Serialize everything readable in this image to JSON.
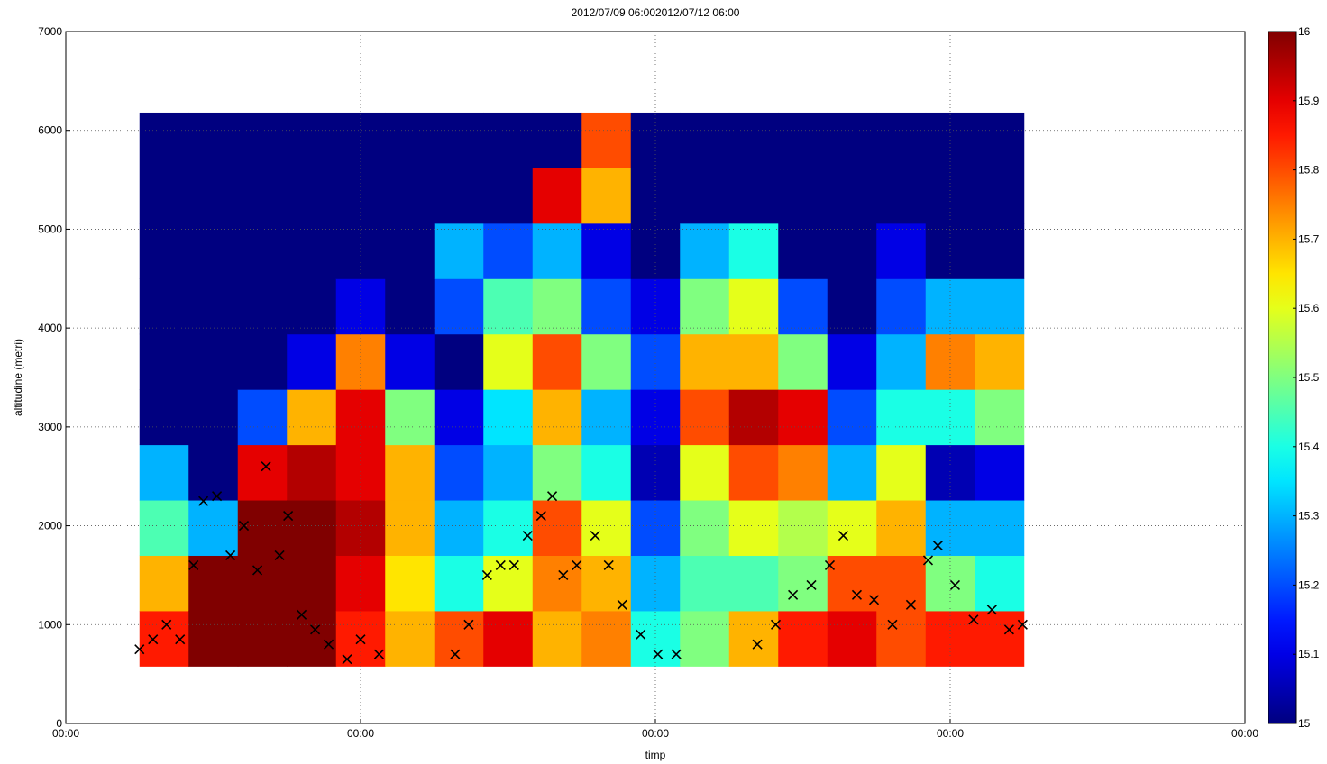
{
  "chart_data": {
    "type": "heatmap",
    "title": "2012/07/09 06:002012/07/12 06:00",
    "x_label": "timp",
    "y_label": "altitudine (metri)",
    "xlim": [
      0,
      96
    ],
    "xticks": [
      {
        "value": 0,
        "label": "00:00"
      },
      {
        "value": 24,
        "label": "00:00"
      },
      {
        "value": 48,
        "label": "00:00"
      },
      {
        "value": 72,
        "label": "00:00"
      },
      {
        "value": 96,
        "label": "00:00"
      }
    ],
    "ylim": [
      0,
      7000
    ],
    "yticks": [
      0,
      1000,
      2000,
      3000,
      4000,
      5000,
      6000,
      7000
    ],
    "grid": true,
    "colormap": "jet",
    "clim": [
      15,
      16
    ],
    "cticks": [
      15,
      15.1,
      15.2,
      15.3,
      15.4,
      15.5,
      15.6,
      15.7,
      15.8,
      15.9,
      16
    ],
    "x_edges": [
      6,
      10,
      14,
      18,
      22,
      26,
      30,
      34,
      38,
      42,
      46,
      50,
      54,
      58,
      62,
      66,
      70,
      74,
      78
    ],
    "y_edges": [
      580,
      1140,
      1700,
      2260,
      2820,
      3380,
      3940,
      4500,
      5060,
      5620,
      6180
    ],
    "z": [
      [
        15.85,
        15.7,
        15.45,
        15.3,
        15,
        15,
        15,
        15,
        15,
        15
      ],
      [
        16,
        16,
        15.3,
        15,
        15,
        15,
        15,
        15,
        15,
        15
      ],
      [
        16,
        16,
        16,
        15.9,
        15.2,
        15,
        15,
        15,
        15,
        15
      ],
      [
        16,
        16,
        16,
        15.95,
        15.7,
        15.1,
        15,
        15,
        15,
        15
      ],
      [
        15.85,
        15.9,
        15.95,
        15.9,
        15.9,
        15.75,
        15.1,
        15,
        15,
        15
      ],
      [
        15.7,
        15.65,
        15.7,
        15.7,
        15.5,
        15.1,
        15,
        15,
        15,
        15
      ],
      [
        15.8,
        15.4,
        15.3,
        15.2,
        15.1,
        15,
        15.2,
        15.3,
        15,
        15
      ],
      [
        15.9,
        15.6,
        15.4,
        15.3,
        15.35,
        15.6,
        15.45,
        15.2,
        15,
        15
      ],
      [
        15.7,
        15.75,
        15.8,
        15.5,
        15.7,
        15.8,
        15.5,
        15.3,
        15.9,
        15
      ],
      [
        15.75,
        15.7,
        15.6,
        15.4,
        15.3,
        15.5,
        15.2,
        15.1,
        15.7,
        15.8
      ],
      [
        15.4,
        15.3,
        15.2,
        15.05,
        15.1,
        15.2,
        15.1,
        15,
        15,
        15
      ],
      [
        15.5,
        15.45,
        15.5,
        15.6,
        15.8,
        15.7,
        15.5,
        15.3,
        15,
        15
      ],
      [
        15.7,
        15.45,
        15.6,
        15.8,
        15.95,
        15.7,
        15.6,
        15.4,
        15,
        15
      ],
      [
        15.85,
        15.5,
        15.55,
        15.75,
        15.9,
        15.5,
        15.2,
        15,
        15,
        15
      ],
      [
        15.9,
        15.8,
        15.6,
        15.3,
        15.2,
        15.1,
        15,
        15,
        15,
        15
      ],
      [
        15.8,
        15.8,
        15.7,
        15.6,
        15.4,
        15.3,
        15.2,
        15.1,
        15,
        15
      ],
      [
        15.85,
        15.5,
        15.3,
        15.05,
        15.4,
        15.75,
        15.3,
        15,
        15,
        15
      ],
      [
        15.85,
        15.4,
        15.3,
        15.1,
        15.5,
        15.7,
        15.3,
        15,
        15,
        15
      ]
    ],
    "markers": {
      "color": "#000000",
      "x": [
        6,
        7.1,
        8.2,
        9.3,
        10.4,
        11.2,
        12.3,
        13.4,
        14.5,
        15.6,
        16.3,
        17.4,
        18.1,
        19.2,
        20.3,
        21.4,
        22.9,
        24,
        25.5,
        31.7,
        32.8,
        34.3,
        35.4,
        36.5,
        37.6,
        38.7,
        39.6,
        40.5,
        41.6,
        43.1,
        44.2,
        45.3,
        46.8,
        48.2,
        49.7,
        56.3,
        57.8,
        59.2,
        60.7,
        62.2,
        63.3,
        64.4,
        65.8,
        67.3,
        68.8,
        70.2,
        71,
        72.4,
        73.9,
        75.4,
        76.8,
        77.9
      ],
      "y": [
        750,
        850,
        1000,
        850,
        1600,
        2250,
        2300,
        1700,
        2000,
        1550,
        2600,
        1700,
        2100,
        1100,
        950,
        800,
        650,
        850,
        700,
        700,
        1000,
        1500,
        1600,
        1600,
        1900,
        2100,
        2300,
        1500,
        1600,
        1900,
        1600,
        1200,
        900,
        700,
        700,
        800,
        1000,
        1300,
        1400,
        1600,
        1900,
        1300,
        1250,
        1000,
        1200,
        1650,
        1800,
        1400,
        1050,
        1150,
        950,
        1000
      ]
    }
  }
}
